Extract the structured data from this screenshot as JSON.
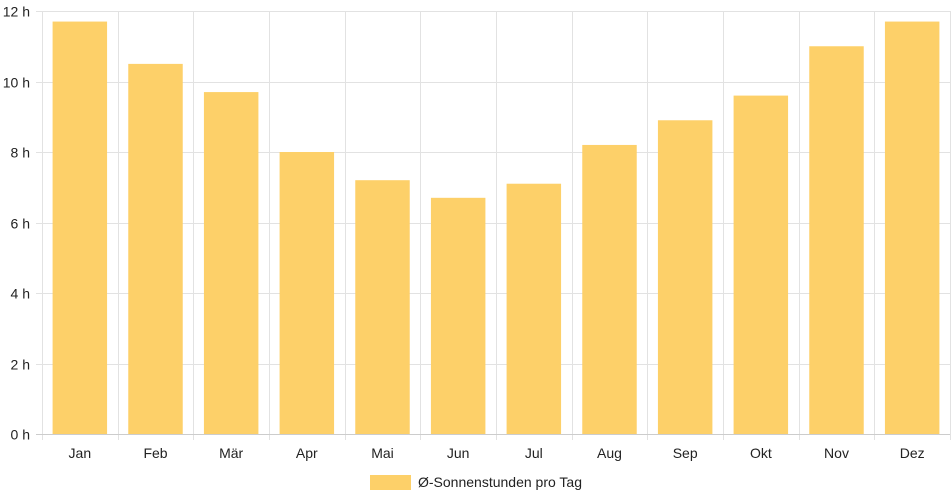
{
  "chart_data": {
    "type": "bar",
    "categories": [
      "Jan",
      "Feb",
      "Mär",
      "Apr",
      "Mai",
      "Jun",
      "Jul",
      "Aug",
      "Sep",
      "Okt",
      "Nov",
      "Dez"
    ],
    "series": [
      {
        "name": "Ø-Sonnenstunden pro Tag",
        "values": [
          11.7,
          10.5,
          9.7,
          8.0,
          7.2,
          6.7,
          7.1,
          8.2,
          8.9,
          9.6,
          11.0,
          11.7
        ],
        "color": "#fdd069"
      }
    ],
    "y_ticks": [
      0,
      2,
      4,
      6,
      8,
      10,
      12
    ],
    "y_tick_suffix": " h",
    "ylim": [
      0,
      12
    ],
    "grid": true,
    "legend_position": "bottom"
  }
}
